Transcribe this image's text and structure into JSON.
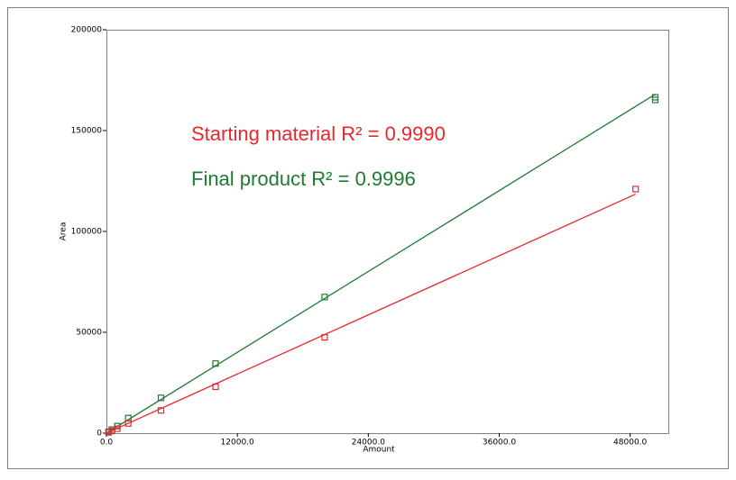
{
  "chart_data": {
    "type": "scatter",
    "x_label": "Amount",
    "y_label": "Area",
    "annotations": [
      "Starting material R² = 0.9990",
      "Final product R² = 0.9996"
    ],
    "xlim": [
      0,
      51500
    ],
    "ylim": [
      0,
      200000
    ],
    "xticks": [
      {
        "value": 0,
        "label": "0.0"
      },
      {
        "value": 12000,
        "label": "12000.0"
      },
      {
        "value": 24000,
        "label": "24000.0"
      },
      {
        "value": 36000,
        "label": "36000.0"
      },
      {
        "value": 48000,
        "label": "48000.0"
      }
    ],
    "yticks": [
      0,
      50000,
      100000,
      150000,
      200000
    ],
    "series": [
      {
        "color": "#1f7a32",
        "x": [
          200,
          500,
          1000,
          2000,
          5000,
          10000,
          20000,
          50300,
          50300
        ],
        "values": [
          700,
          1800,
          3500,
          7500,
          17500,
          34500,
          67500,
          166500,
          165200
        ],
        "fit": {
          "x": [
            0,
            50300
          ],
          "values": [
            0,
            168000
          ]
        }
      },
      {
        "color": "#e8282f",
        "x": [
          200,
          500,
          1000,
          2000,
          5000,
          10000,
          20000,
          48500
        ],
        "values": [
          400,
          1100,
          2200,
          4800,
          11300,
          23000,
          47500,
          121000
        ],
        "fit": {
          "x": [
            0,
            48500
          ],
          "values": [
            0,
            118500
          ]
        }
      }
    ]
  }
}
